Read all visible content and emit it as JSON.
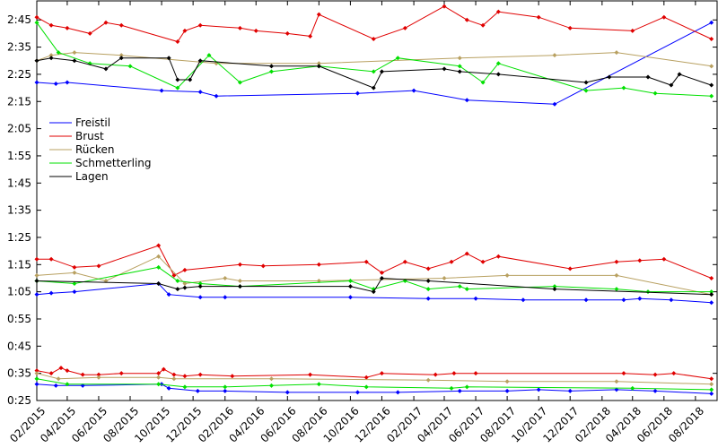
{
  "chart_data": {
    "type": "line",
    "y_ticks": [
      "0:25",
      "0:35",
      "0:45",
      "0:55",
      "1:05",
      "1:15",
      "1:25",
      "1:35",
      "1:45",
      "1:55",
      "2:05",
      "2:15",
      "2:25",
      "2:35",
      "2:45"
    ],
    "x_ticks": [
      "02/2015",
      "04/2015",
      "06/2015",
      "08/2015",
      "10/2015",
      "12/2015",
      "02/2016",
      "04/2016",
      "06/2016",
      "08/2016",
      "10/2016",
      "12/2016",
      "02/2017",
      "04/2017",
      "06/2017",
      "08/2017",
      "10/2017",
      "12/2017",
      "02/2018",
      "04/2018",
      "06/2018",
      "08/2018"
    ],
    "xlim": [
      "2015-02-01",
      "2018-09-12"
    ],
    "ylim_seconds": [
      25,
      172
    ],
    "grid": false,
    "legend_position": "left-middle",
    "series": [
      {
        "name": "Freistil",
        "color": "#0000ff",
        "groups": [
          [
            [
              "2015-02-01",
              "0:31"
            ],
            [
              "2015-03-10",
              "0:30.5"
            ],
            [
              "2015-05-01",
              "0:30.5"
            ],
            [
              "2015-10-01",
              "0:31"
            ],
            [
              "2015-10-15",
              "0:29.5"
            ],
            [
              "2015-12-10",
              "0:28.5"
            ],
            [
              "2016-02-01",
              "0:28.5"
            ],
            [
              "2016-06-01",
              "0:28"
            ],
            [
              "2016-10-15",
              "0:28"
            ],
            [
              "2017-01-01",
              "0:28"
            ],
            [
              "2017-05-01",
              "0:28.5"
            ],
            [
              "2017-08-01",
              "0:28.5"
            ],
            [
              "2017-10-01",
              "0:29"
            ],
            [
              "2017-12-01",
              "0:28.5"
            ],
            [
              "2018-03-01",
              "0:29"
            ],
            [
              "2018-05-15",
              "0:28.5"
            ],
            [
              "2018-09-01",
              "0:27.5"
            ]
          ],
          [
            [
              "2015-02-01",
              "1:04"
            ],
            [
              "2015-03-01",
              "1:04.5"
            ],
            [
              "2015-04-15",
              "1:05"
            ],
            [
              "2015-09-25",
              "1:08"
            ],
            [
              "2015-10-15",
              "1:04"
            ],
            [
              "2015-12-15",
              "1:03"
            ],
            [
              "2016-02-01",
              "1:03"
            ],
            [
              "2016-10-01",
              "1:03"
            ],
            [
              "2017-03-01",
              "1:02.5"
            ],
            [
              "2017-06-01",
              "1:02.5"
            ],
            [
              "2017-09-01",
              "1:02"
            ],
            [
              "2018-01-01",
              "1:02"
            ],
            [
              "2018-03-15",
              "1:02"
            ],
            [
              "2018-04-15",
              "1:02.5"
            ],
            [
              "2018-06-15",
              "1:02"
            ],
            [
              "2018-09-01",
              "1:01"
            ]
          ],
          [
            [
              "2015-02-01",
              "2:22"
            ],
            [
              "2015-03-10",
              "2:21.5"
            ],
            [
              "2015-04-01",
              "2:22"
            ],
            [
              "2015-10-01",
              "2:19"
            ],
            [
              "2015-12-15",
              "2:18.5"
            ],
            [
              "2016-01-15",
              "2:17"
            ],
            [
              "2016-10-15",
              "2:18"
            ],
            [
              "2017-02-01",
              "2:19"
            ],
            [
              "2017-05-15",
              "2:15.5"
            ],
            [
              "2017-11-01",
              "2:14"
            ],
            [
              "2018-09-01",
              "2:44"
            ]
          ]
        ]
      },
      {
        "name": "Brust",
        "color": "#e00000",
        "groups": [
          [
            [
              "2015-02-01",
              "0:36"
            ],
            [
              "2015-03-01",
              "0:35"
            ],
            [
              "2015-03-20",
              "0:37"
            ],
            [
              "2015-04-01",
              "0:36"
            ],
            [
              "2015-05-01",
              "0:34.5"
            ],
            [
              "2015-06-01",
              "0:34.5"
            ],
            [
              "2015-07-15",
              "0:35"
            ],
            [
              "2015-09-25",
              "0:35"
            ],
            [
              "2015-10-05",
              "0:36.5"
            ],
            [
              "2015-10-25",
              "0:34.5"
            ],
            [
              "2015-11-15",
              "0:34"
            ],
            [
              "2015-12-15",
              "0:34.5"
            ],
            [
              "2016-02-15",
              "0:34"
            ],
            [
              "2016-07-15",
              "0:34.5"
            ],
            [
              "2016-11-01",
              "0:33.5"
            ],
            [
              "2016-12-01",
              "0:35"
            ],
            [
              "2017-03-15",
              "0:34.5"
            ],
            [
              "2017-04-20",
              "0:35"
            ],
            [
              "2017-06-01",
              "0:35"
            ],
            [
              "2018-03-15",
              "0:35"
            ],
            [
              "2018-05-15",
              "0:34.5"
            ],
            [
              "2018-06-20",
              "0:35"
            ],
            [
              "2018-09-01",
              "0:33"
            ]
          ],
          [
            [
              "2015-02-01",
              "1:17"
            ],
            [
              "2015-03-01",
              "1:17"
            ],
            [
              "2015-04-15",
              "1:14"
            ],
            [
              "2015-06-01",
              "1:14.5"
            ],
            [
              "2015-09-25",
              "1:22"
            ],
            [
              "2015-10-25",
              "1:11"
            ],
            [
              "2015-11-15",
              "1:13"
            ],
            [
              "2016-03-01",
              "1:15"
            ],
            [
              "2016-04-15",
              "1:14.5"
            ],
            [
              "2016-08-01",
              "1:15"
            ],
            [
              "2016-11-01",
              "1:16"
            ],
            [
              "2016-12-01",
              "1:12"
            ],
            [
              "2017-01-15",
              "1:16"
            ],
            [
              "2017-03-01",
              "1:13.5"
            ],
            [
              "2017-04-15",
              "1:16"
            ],
            [
              "2017-05-15",
              "1:19"
            ],
            [
              "2017-06-15",
              "1:16"
            ],
            [
              "2017-07-15",
              "1:18"
            ],
            [
              "2017-12-01",
              "1:13.5"
            ],
            [
              "2018-03-01",
              "1:16"
            ],
            [
              "2018-04-15",
              "1:16.5"
            ],
            [
              "2018-06-01",
              "1:17"
            ],
            [
              "2018-09-01",
              "1:10"
            ]
          ],
          [
            [
              "2015-02-01",
              "2:46"
            ],
            [
              "2015-03-01",
              "2:43"
            ],
            [
              "2015-04-01",
              "2:42"
            ],
            [
              "2015-05-15",
              "2:40"
            ],
            [
              "2015-06-15",
              "2:44"
            ],
            [
              "2015-07-15",
              "2:43"
            ],
            [
              "2015-11-01",
              "2:37"
            ],
            [
              "2015-11-15",
              "2:41"
            ],
            [
              "2015-12-15",
              "2:43"
            ],
            [
              "2016-03-01",
              "2:42"
            ],
            [
              "2016-04-01",
              "2:41"
            ],
            [
              "2016-06-01",
              "2:40"
            ],
            [
              "2016-07-15",
              "2:39"
            ],
            [
              "2016-08-01",
              "2:47"
            ],
            [
              "2016-11-15",
              "2:38"
            ],
            [
              "2017-01-15",
              "2:42"
            ],
            [
              "2017-04-01",
              "2:50"
            ],
            [
              "2017-05-15",
              "2:45"
            ],
            [
              "2017-06-15",
              "2:43"
            ],
            [
              "2017-07-15",
              "2:48"
            ],
            [
              "2017-10-01",
              "2:46"
            ],
            [
              "2017-12-01",
              "2:42"
            ],
            [
              "2018-04-01",
              "2:41"
            ],
            [
              "2018-06-01",
              "2:46"
            ],
            [
              "2018-09-01",
              "2:38"
            ]
          ]
        ]
      },
      {
        "name": "Rücken",
        "color": "#b8a060",
        "groups": [
          [
            [
              "2015-02-01",
              "0:35"
            ],
            [
              "2015-03-15",
              "0:33"
            ],
            [
              "2015-06-01",
              "0:33.5"
            ],
            [
              "2015-09-25",
              "0:33.5"
            ],
            [
              "2015-10-25",
              "0:33"
            ],
            [
              "2016-05-01",
              "0:33"
            ],
            [
              "2017-03-01",
              "0:32.5"
            ],
            [
              "2017-08-01",
              "0:32"
            ],
            [
              "2018-03-01",
              "0:32"
            ],
            [
              "2018-09-01",
              "0:31"
            ]
          ],
          [
            [
              "2015-02-01",
              "1:11"
            ],
            [
              "2015-04-15",
              "1:12"
            ],
            [
              "2015-06-15",
              "1:09"
            ],
            [
              "2015-09-25",
              "1:18"
            ],
            [
              "2015-11-15",
              "1:08"
            ],
            [
              "2016-02-01",
              "1:10"
            ],
            [
              "2016-03-01",
              "1:09"
            ],
            [
              "2016-08-01",
              "1:09"
            ],
            [
              "2017-04-01",
              "1:10"
            ],
            [
              "2017-08-01",
              "1:11"
            ],
            [
              "2018-03-01",
              "1:11"
            ],
            [
              "2018-09-01",
              "1:04"
            ]
          ],
          [
            [
              "2015-02-01",
              "2:30"
            ],
            [
              "2015-03-01",
              "2:32"
            ],
            [
              "2015-04-15",
              "2:33"
            ],
            [
              "2015-07-15",
              "2:32"
            ],
            [
              "2016-01-15",
              "2:29"
            ],
            [
              "2016-08-01",
              "2:29"
            ],
            [
              "2017-05-01",
              "2:31"
            ],
            [
              "2017-11-01",
              "2:32"
            ],
            [
              "2018-03-01",
              "2:33"
            ],
            [
              "2018-09-01",
              "2:28"
            ]
          ]
        ]
      },
      {
        "name": "Schmetterling",
        "color": "#00e000",
        "groups": [
          [
            [
              "2015-02-01",
              "0:33"
            ],
            [
              "2015-04-01",
              "0:31"
            ],
            [
              "2015-09-25",
              "0:31"
            ],
            [
              "2015-11-15",
              "0:30"
            ],
            [
              "2016-02-01",
              "0:30"
            ],
            [
              "2016-05-01",
              "0:30.5"
            ],
            [
              "2016-08-01",
              "0:31"
            ],
            [
              "2016-11-01",
              "0:30"
            ],
            [
              "2017-04-15",
              "0:29.5"
            ],
            [
              "2017-05-15",
              "0:30"
            ],
            [
              "2018-04-01",
              "0:29.5"
            ],
            [
              "2018-09-01",
              "0:29"
            ]
          ],
          [
            [
              "2015-02-01",
              "1:09"
            ],
            [
              "2015-04-15",
              "1:08"
            ],
            [
              "2015-09-25",
              "1:14"
            ],
            [
              "2015-11-01",
              "1:09"
            ],
            [
              "2015-12-15",
              "1:08"
            ],
            [
              "2016-03-01",
              "1:07"
            ],
            [
              "2016-10-01",
              "1:09"
            ],
            [
              "2016-11-15",
              "1:06"
            ],
            [
              "2017-01-15",
              "1:09"
            ],
            [
              "2017-03-01",
              "1:06"
            ],
            [
              "2017-05-01",
              "1:07"
            ],
            [
              "2017-05-15",
              "1:06"
            ],
            [
              "2017-11-01",
              "1:07"
            ],
            [
              "2018-03-01",
              "1:06"
            ],
            [
              "2018-05-01",
              "1:05"
            ],
            [
              "2018-09-01",
              "1:05"
            ]
          ],
          [
            [
              "2015-02-01",
              "2:44"
            ],
            [
              "2015-03-15",
              "2:33"
            ],
            [
              "2015-05-15",
              "2:29"
            ],
            [
              "2015-08-01",
              "2:28"
            ],
            [
              "2015-11-01",
              "2:20"
            ],
            [
              "2016-01-01",
              "2:32"
            ],
            [
              "2016-03-01",
              "2:22"
            ],
            [
              "2016-05-01",
              "2:26"
            ],
            [
              "2016-08-01",
              "2:28"
            ],
            [
              "2016-11-15",
              "2:26"
            ],
            [
              "2017-01-01",
              "2:31"
            ],
            [
              "2017-05-01",
              "2:28"
            ],
            [
              "2017-06-15",
              "2:22"
            ],
            [
              "2017-07-15",
              "2:29"
            ],
            [
              "2018-01-01",
              "2:19"
            ],
            [
              "2018-03-15",
              "2:20"
            ],
            [
              "2018-05-15",
              "2:18"
            ],
            [
              "2018-09-01",
              "2:17"
            ]
          ]
        ]
      },
      {
        "name": "Lagen",
        "color": "#000000",
        "groups": [
          [
            [
              "2015-02-01",
              "1:09"
            ],
            [
              "2015-09-25",
              "1:08"
            ],
            [
              "2015-11-01",
              "1:06"
            ],
            [
              "2015-11-15",
              "1:06.5"
            ],
            [
              "2015-12-15",
              "1:07"
            ],
            [
              "2016-03-01",
              "1:07"
            ],
            [
              "2016-10-01",
              "1:07"
            ],
            [
              "2016-11-15",
              "1:05"
            ],
            [
              "2016-12-01",
              "1:10"
            ],
            [
              "2017-03-01",
              "1:09"
            ],
            [
              "2017-11-01",
              "1:06"
            ],
            [
              "2018-09-01",
              "1:04"
            ]
          ],
          [
            [
              "2015-02-01",
              "2:30"
            ],
            [
              "2015-03-01",
              "2:31"
            ],
            [
              "2015-04-15",
              "2:30"
            ],
            [
              "2015-06-15",
              "2:27"
            ],
            [
              "2015-07-15",
              "2:31"
            ],
            [
              "2015-10-15",
              "2:31"
            ],
            [
              "2015-11-01",
              "2:23"
            ],
            [
              "2015-11-25",
              "2:23"
            ],
            [
              "2015-12-15",
              "2:30"
            ],
            [
              "2016-05-01",
              "2:28"
            ],
            [
              "2016-08-01",
              "2:28"
            ],
            [
              "2016-11-15",
              "2:20"
            ],
            [
              "2016-12-01",
              "2:26"
            ],
            [
              "2017-04-01",
              "2:27"
            ],
            [
              "2017-05-01",
              "2:26"
            ],
            [
              "2017-07-15",
              "2:25"
            ],
            [
              "2018-01-01",
              "2:22"
            ],
            [
              "2018-02-15",
              "2:24"
            ],
            [
              "2018-05-01",
              "2:24"
            ],
            [
              "2018-06-15",
              "2:21"
            ],
            [
              "2018-07-01",
              "2:25"
            ],
            [
              "2018-09-01",
              "2:21"
            ]
          ]
        ]
      }
    ]
  }
}
